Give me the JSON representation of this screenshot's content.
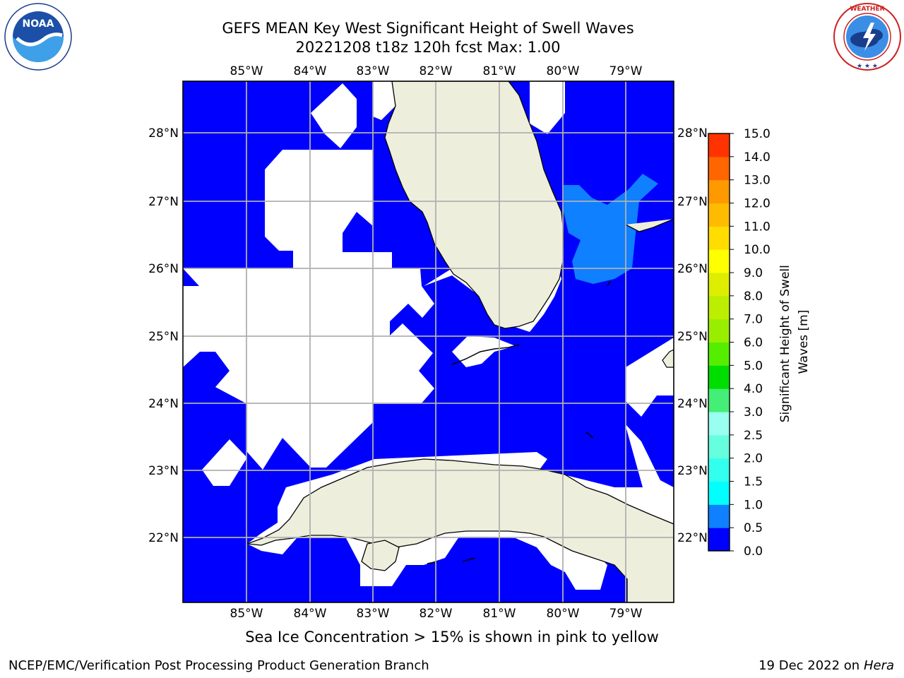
{
  "title": {
    "line1": "GEFS MEAN Key West Significant Height of Swell Waves",
    "line2": "20221208 t18z 120h fcst   Max: 1.00"
  },
  "logos": {
    "left": {
      "name": "noaa-logo",
      "text": "NOAA",
      "ring_text": "NATIONAL OCEANIC AND ATMOSPHERIC ADMINISTRATION · U.S. DEPARTMENT OF COMMERCE"
    },
    "right": {
      "name": "nws-logo",
      "ring_text": "NATIONAL WEATHER SERVICE"
    }
  },
  "map": {
    "lon_labels": [
      "85°W",
      "84°W",
      "83°W",
      "82°W",
      "81°W",
      "80°W",
      "79°W"
    ],
    "lat_labels": [
      "28°N",
      "27°N",
      "26°N",
      "25°N",
      "24°N",
      "23°N",
      "22°N"
    ],
    "colors": {
      "ocean_low": "#0000ff",
      "ocean_mid": "#0f80ff",
      "land": "#eeeedd",
      "grid": "#b0b0b0"
    }
  },
  "colorbar": {
    "label": "Significant Height of Swell Waves [m]",
    "ticks": [
      "0.0",
      "0.5",
      "1.0",
      "1.5",
      "2.0",
      "2.5",
      "3.0",
      "4.0",
      "5.0",
      "6.0",
      "7.0",
      "8.0",
      "9.0",
      "10.0",
      "11.0",
      "12.0",
      "13.0",
      "14.0",
      "15.0"
    ],
    "colors": [
      "#0000ff",
      "#0f80ff",
      "#00ffff",
      "#33ffee",
      "#66ffdd",
      "#99ffee",
      "#44ee77",
      "#00dd00",
      "#55ee00",
      "#99ee00",
      "#bbee00",
      "#ddee00",
      "#ffff00",
      "#ffdd00",
      "#ffbb00",
      "#ff9900",
      "#ff6600",
      "#ff3300"
    ]
  },
  "note": "Sea Ice Concentration > 15% is shown in pink to yellow",
  "footer": {
    "left": "NCEP/EMC/Verification Post Processing Product Generation Branch",
    "right_date": "19 Dec 2022 on",
    "right_host": "Hera"
  }
}
